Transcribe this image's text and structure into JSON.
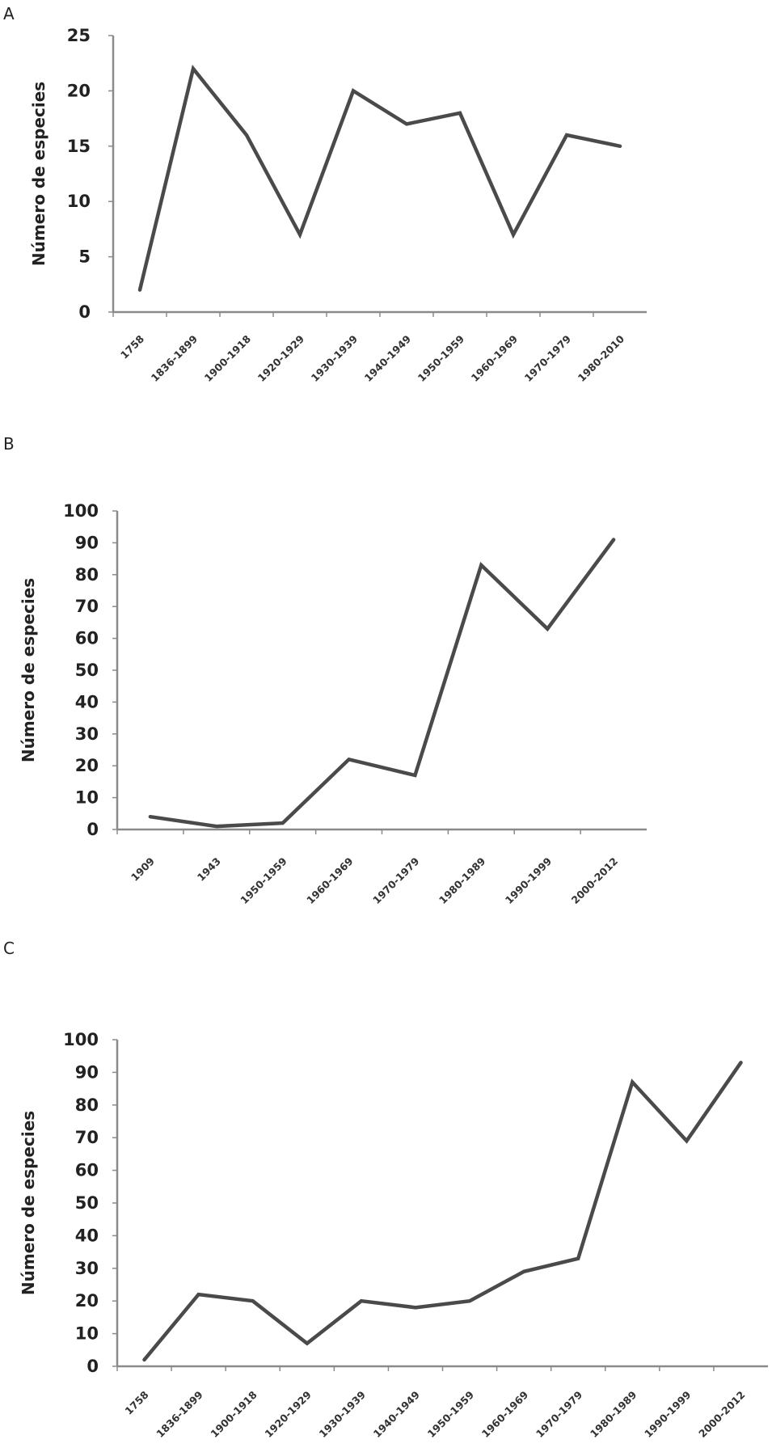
{
  "chart_data": [
    {
      "panel": "A",
      "type": "line",
      "title": "",
      "xlabel": "",
      "ylabel": "Número de especies",
      "ylim": [
        0,
        25
      ],
      "yticks": [
        0,
        5,
        10,
        15,
        20,
        25
      ],
      "grid": false,
      "legend": "none",
      "categories": [
        "1758",
        "1836-1899",
        "1900-1918",
        "1920-1929",
        "1930-1939",
        "1940-1949",
        "1950-1959",
        "1960-1969",
        "1970-1979",
        "1980-2010"
      ],
      "series": [
        {
          "values": [
            2,
            22,
            16,
            7,
            20,
            17,
            18,
            7,
            16,
            15
          ]
        }
      ],
      "line_color": "#4a4a4a"
    },
    {
      "panel": "B",
      "type": "line",
      "title": "",
      "xlabel": "",
      "ylabel": "Número de especies",
      "ylim": [
        0,
        100
      ],
      "yticks": [
        0,
        10,
        20,
        30,
        40,
        50,
        60,
        70,
        80,
        90,
        100
      ],
      "grid": false,
      "legend": "none",
      "categories": [
        "1909",
        "1943",
        "1950-1959",
        "1960-1969",
        "1970-1979",
        "1980-1989",
        "1990-1999",
        "2000-2012"
      ],
      "series": [
        {
          "values": [
            4,
            1,
            2,
            22,
            17,
            83,
            63,
            91
          ]
        }
      ],
      "line_color": "#4a4a4a"
    },
    {
      "panel": "C",
      "type": "line",
      "title": "",
      "xlabel": "",
      "ylabel": "Número de especies",
      "ylim": [
        0,
        100
      ],
      "yticks": [
        0,
        10,
        20,
        30,
        40,
        50,
        60,
        70,
        80,
        90,
        100
      ],
      "grid": false,
      "legend": "none",
      "categories": [
        "1758",
        "1836-1899",
        "1900-1918",
        "1920-1929",
        "1930-1939",
        "1940-1949",
        "1950-1959",
        "1960-1969",
        "1970-1979",
        "1980-1989",
        "1990-1999",
        "2000-2012"
      ],
      "series": [
        {
          "values": [
            2,
            22,
            20,
            7,
            20,
            18,
            20,
            29,
            33,
            87,
            69,
            93
          ]
        }
      ],
      "line_color": "#4a4a4a"
    }
  ]
}
